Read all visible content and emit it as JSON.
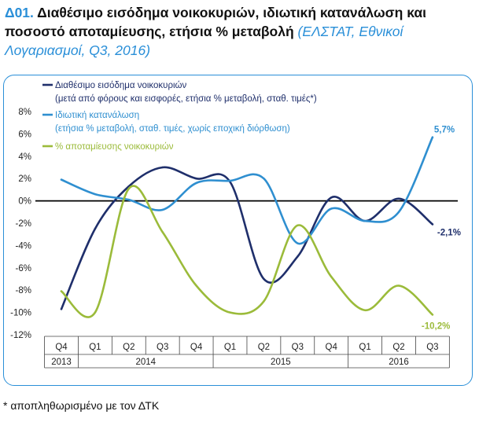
{
  "header": {
    "code": "Δ01.",
    "title": "Διαθέσιμο εισόδημα νοικοκυριών, ιδιωτική κατανάλωση και ποσοστό αποταμίευσης, ετήσια % μεταβολή",
    "source": "(ΕΛΣΤΑΤ, Εθνικοί Λογαριασμοί, Q3, 2016)"
  },
  "footnote": "* αποπληθωρισμένο με τον ΔΤΚ",
  "colors": {
    "income": "#1f2f6b",
    "consumption": "#2f8fd0",
    "savings": "#9bbb3a",
    "frame": "#2a8fd8",
    "zero": "#000000"
  },
  "chart_data": {
    "type": "line",
    "x": [
      "Q4",
      "Q1",
      "Q2",
      "Q3",
      "Q4",
      "Q1",
      "Q2",
      "Q3",
      "Q4",
      "Q1",
      "Q2",
      "Q3"
    ],
    "year_groups": [
      {
        "label": "2013",
        "span": 1
      },
      {
        "label": "2014",
        "span": 4
      },
      {
        "label": "2015",
        "span": 4
      },
      {
        "label": "2016",
        "span": 3
      }
    ],
    "ylim": [
      -12,
      8
    ],
    "yticks": [
      -12,
      -10,
      -8,
      -6,
      -4,
      -2,
      0,
      2,
      4,
      6,
      8
    ],
    "ytick_labels": [
      "-12%",
      "-10%",
      "-8%",
      "-6%",
      "-4%",
      "-2%",
      "0%",
      "2%",
      "4%",
      "6%",
      "8%"
    ],
    "series": [
      {
        "key": "income",
        "name": "Διαθέσιμο εισόδημα νοικοκυριών",
        "subtitle": "(μετά από φόρους και εισφορές, ετήσια % μεταβολή, σταθ. τιμές*)",
        "values": [
          -9.7,
          -2.5,
          1.3,
          3.0,
          2.0,
          1.7,
          -7.0,
          -5.0,
          0.3,
          -1.8,
          0.2,
          -2.1
        ],
        "end_label": "-2,1%"
      },
      {
        "key": "consumption",
        "name": "Ιδιωτική κατανάλωση",
        "subtitle": "(ετήσια % μεταβολή, σταθ. τιμές, χωρίς εποχική διόρθωση)",
        "values": [
          1.9,
          0.6,
          0.1,
          -0.8,
          1.6,
          1.8,
          2.0,
          -3.8,
          -0.7,
          -1.8,
          -1.0,
          5.7
        ],
        "end_label": "5,7%"
      },
      {
        "key": "savings",
        "name": "% αποταμίευσης νοικοκυριών",
        "subtitle": "",
        "values": [
          -8.1,
          -10.0,
          1.1,
          -2.8,
          -7.6,
          -10.0,
          -9.0,
          -2.2,
          -6.8,
          -9.8,
          -7.6,
          -10.2
        ],
        "end_label": "-10,2%"
      }
    ]
  }
}
